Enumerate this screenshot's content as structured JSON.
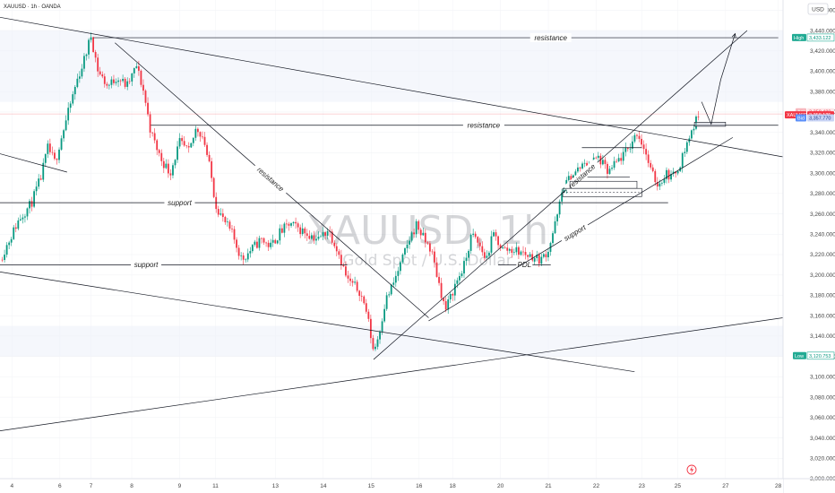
{
  "header": {
    "symbol": "XAUUSD · 1h · OANDA"
  },
  "currency_button": "USD",
  "watermark": {
    "title": "XAUUSD, 1h",
    "subtitle": "Gold Spot / U.S. Dollar"
  },
  "flash_icon": "lightning-icon",
  "chart_data": {
    "type": "candlestick",
    "symbol": "XAUUSD",
    "timeframe": "1h",
    "ylim": [
      3000,
      3470
    ],
    "yticks": [
      3000,
      3020,
      3040,
      3060,
      3080,
      3100,
      3120,
      3140,
      3160,
      3180,
      3200,
      3220,
      3240,
      3260,
      3280,
      3300,
      3320,
      3340,
      3360,
      3380,
      3400,
      3420,
      3440,
      3460
    ],
    "ytick_labels": [
      "3,000.000",
      "3,020.000",
      "3,040.000",
      "3,060.000",
      "3,080.000",
      "3,100.000",
      "3,120.000",
      "3,140.000",
      "3,160.000",
      "3,180.000",
      "3,200.000",
      "3,220.000",
      "3,240.000",
      "3,260.000",
      "3,280.000",
      "3,300.000",
      "3,320.000",
      "3,340.000",
      "3,360.000",
      "3,380.000",
      "3,400.000",
      "3,420.000",
      "3,440.000",
      "3,460.000"
    ],
    "x_ticks": [
      {
        "t": 0.0,
        "label": "4"
      },
      {
        "t": 2.0,
        "label": "6"
      },
      {
        "t": 3.3,
        "label": "7"
      },
      {
        "t": 5.0,
        "label": "8"
      },
      {
        "t": 7.0,
        "label": "9"
      },
      {
        "t": 8.5,
        "label": "11"
      },
      {
        "t": 11.0,
        "label": "13"
      },
      {
        "t": 13.0,
        "label": "14"
      },
      {
        "t": 15.0,
        "label": "15"
      },
      {
        "t": 17.0,
        "label": "16"
      },
      {
        "t": 18.4,
        "label": "18"
      },
      {
        "t": 20.4,
        "label": "20"
      },
      {
        "t": 22.4,
        "label": "21"
      },
      {
        "t": 24.4,
        "label": "22"
      },
      {
        "t": 26.3,
        "label": "23"
      },
      {
        "t": 27.8,
        "label": "25"
      },
      {
        "t": 29.8,
        "label": "27"
      },
      {
        "t": 32.0,
        "label": "28"
      }
    ],
    "xlim": [
      -0.5,
      32.2
    ],
    "anchors": [
      [
        -0.5,
        3215
      ],
      [
        0.3,
        3255
      ],
      [
        0.8,
        3270
      ],
      [
        1.2,
        3295
      ],
      [
        1.5,
        3325
      ],
      [
        1.8,
        3310
      ],
      [
        2.0,
        3330
      ],
      [
        2.3,
        3355
      ],
      [
        2.7,
        3390
      ],
      [
        3.0,
        3410
      ],
      [
        3.3,
        3435
      ],
      [
        3.6,
        3400
      ],
      [
        4.0,
        3385
      ],
      [
        4.4,
        3395
      ],
      [
        4.8,
        3385
      ],
      [
        5.2,
        3405
      ],
      [
        5.5,
        3380
      ],
      [
        5.8,
        3340
      ],
      [
        6.2,
        3315
      ],
      [
        6.6,
        3300
      ],
      [
        7.0,
        3330
      ],
      [
        7.4,
        3320
      ],
      [
        7.7,
        3345
      ],
      [
        8.0,
        3335
      ],
      [
        8.3,
        3300
      ],
      [
        8.5,
        3270
      ],
      [
        8.8,
        3255
      ],
      [
        9.2,
        3240
      ],
      [
        9.6,
        3215
      ],
      [
        10.0,
        3225
      ],
      [
        10.4,
        3235
      ],
      [
        10.8,
        3228
      ],
      [
        11.2,
        3242
      ],
      [
        11.6,
        3250
      ],
      [
        12.0,
        3245
      ],
      [
        12.4,
        3240
      ],
      [
        12.8,
        3235
      ],
      [
        13.2,
        3245
      ],
      [
        13.6,
        3225
      ],
      [
        14.0,
        3195
      ],
      [
        14.5,
        3185
      ],
      [
        14.8,
        3165
      ],
      [
        15.1,
        3125
      ],
      [
        15.3,
        3140
      ],
      [
        15.6,
        3175
      ],
      [
        15.9,
        3190
      ],
      [
        16.3,
        3215
      ],
      [
        16.6,
        3235
      ],
      [
        16.9,
        3250
      ],
      [
        17.2,
        3235
      ],
      [
        17.5,
        3225
      ],
      [
        17.8,
        3195
      ],
      [
        18.1,
        3165
      ],
      [
        18.5,
        3190
      ],
      [
        18.9,
        3210
      ],
      [
        19.2,
        3240
      ],
      [
        19.5,
        3230
      ],
      [
        19.8,
        3215
      ],
      [
        20.1,
        3240
      ],
      [
        20.5,
        3225
      ],
      [
        20.9,
        3225
      ],
      [
        21.3,
        3222
      ],
      [
        21.7,
        3218
      ],
      [
        22.1,
        3215
      ],
      [
        22.4,
        3225
      ],
      [
        22.8,
        3260
      ],
      [
        23.0,
        3285
      ],
      [
        23.3,
        3295
      ],
      [
        23.7,
        3305
      ],
      [
        24.1,
        3310
      ],
      [
        24.5,
        3315
      ],
      [
        24.9,
        3300
      ],
      [
        25.3,
        3312
      ],
      [
        25.7,
        3322
      ],
      [
        26.1,
        3340
      ],
      [
        26.4,
        3325
      ],
      [
        26.7,
        3300
      ],
      [
        27.0,
        3288
      ],
      [
        27.3,
        3300
      ],
      [
        27.6,
        3296
      ],
      [
        27.9,
        3310
      ],
      [
        28.2,
        3330
      ],
      [
        28.5,
        3348
      ],
      [
        28.7,
        3358
      ]
    ],
    "current_price": {
      "label": "XAUUSD",
      "value": "3,358.125"
    },
    "ask": {
      "label": "Ask",
      "value": "3,358.480"
    },
    "bid": {
      "label": "Bid",
      "value": "3,357.770"
    },
    "high": {
      "label": "High",
      "value": "3,433.122"
    },
    "low": {
      "label": "Low",
      "value": "3,120.753"
    },
    "levels": [
      {
        "kind": "hline",
        "price": 3433,
        "from_t": 3.4,
        "to_t": 32.0,
        "text": "resistance",
        "text_t": 22.5
      },
      {
        "kind": "hline",
        "price": 3347,
        "from_t": 5.8,
        "to_t": 32.0,
        "text": "resistance",
        "text_t": 19.7
      },
      {
        "kind": "hline",
        "price": 3271,
        "from_t": -0.5,
        "to_t": 27.4,
        "text": "support",
        "text_t": 7.0
      },
      {
        "kind": "hline",
        "price": 3210,
        "from_t": -0.5,
        "to_t": 14.0,
        "text": "support",
        "text_t": 5.6
      },
      {
        "kind": "hline",
        "price": 3210,
        "from_t": 20.3,
        "to_t": 22.5,
        "text": "PDL",
        "text_t": 21.4
      }
    ],
    "trendlines": [
      {
        "from": [
          -0.5,
          3453
        ],
        "to": [
          32.2,
          3316
        ]
      },
      {
        "from": [
          -0.5,
          3319
        ],
        "to": [
          2.3,
          3301
        ]
      },
      {
        "from": [
          -0.5,
          3203
        ],
        "to": [
          26.0,
          3105
        ]
      },
      {
        "from": [
          -0.5,
          3047
        ],
        "to": [
          32.2,
          3158
        ]
      },
      {
        "from": [
          4.3,
          3428
        ],
        "to": [
          17.4,
          3158
        ],
        "text": "resistance",
        "text_t": 10.8
      },
      {
        "from": [
          15.1,
          3117
        ],
        "to": [
          30.7,
          3440
        ],
        "text": "resistance",
        "text_t": 23.8
      },
      {
        "from": [
          17.4,
          3155
        ],
        "to": [
          30.1,
          3335
        ],
        "text": "support",
        "text_t": 23.5
      }
    ],
    "boxes": [
      {
        "t0": 23.0,
        "t1": 26.3,
        "p0": 3277,
        "p1": 3285
      },
      {
        "t0": 23.3,
        "t1": 26.1,
        "p0": 3285,
        "p1": 3292
      },
      {
        "t0": 28.5,
        "t1": 29.8,
        "p0": 3346,
        "p1": 3350
      }
    ],
    "boxes_dashed": [
      {
        "t0": 23.0,
        "t1": 26.2,
        "p": 3281
      }
    ],
    "short_levels": [
      {
        "price": 3325,
        "from_t": 23.8,
        "to_t": 26.3
      },
      {
        "price": 3296,
        "from_t": 23.4,
        "to_t": 25.8
      }
    ],
    "projection": [
      [
        28.8,
        3370
      ],
      [
        29.2,
        3348
      ],
      [
        29.6,
        3392
      ],
      [
        30.2,
        3437
      ]
    ]
  }
}
